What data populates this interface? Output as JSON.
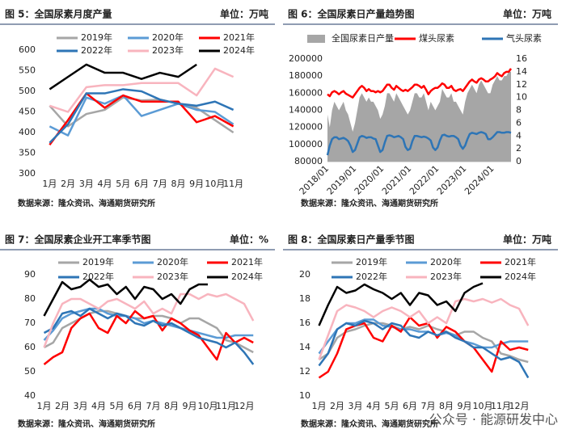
{
  "chart_data": [
    {
      "type": "line",
      "title": "图 5：全国尿素月度产量",
      "unit": "单位：万吨",
      "source": "数据来源：隆众资讯、海通期货研究所",
      "categories": [
        "1月",
        "2月",
        "3月",
        "4月",
        "5月",
        "6月",
        "7月",
        "8月",
        "9月",
        "10月",
        "11月"
      ],
      "ylim": [
        300,
        600
      ],
      "yticks": [
        300,
        350,
        400,
        450,
        500,
        550,
        600
      ],
      "series": [
        {
          "name": "2019年",
          "color": "#a6a6a6",
          "values": [
            465,
            415,
            445,
            455,
            485,
            478,
            480,
            470,
            460,
            430,
            400
          ]
        },
        {
          "name": "2020年",
          "color": "#5b9bd5",
          "values": [
            415,
            393,
            485,
            470,
            490,
            440,
            455,
            470,
            455,
            450,
            420
          ]
        },
        {
          "name": "2021年",
          "color": "#ff0000",
          "values": [
            370,
            430,
            495,
            460,
            490,
            475,
            475,
            475,
            425,
            440,
            415
          ]
        },
        {
          "name": "2022年",
          "color": "#2e75b6",
          "values": [
            375,
            420,
            495,
            495,
            505,
            500,
            480,
            470,
            465,
            475,
            455
          ]
        },
        {
          "name": "2023年",
          "color": "#f8b4be",
          "values": [
            465,
            450,
            510,
            515,
            515,
            520,
            520,
            520,
            490,
            555,
            535
          ]
        },
        {
          "name": "2024年",
          "color": "#000000",
          "values": [
            505,
            535,
            565,
            545,
            545,
            530,
            545,
            535,
            565,
            null,
            null
          ]
        }
      ]
    },
    {
      "type": "area_line",
      "title": "图 6：全国尿素日产量趋势图",
      "unit": "单位：万吨",
      "source": "数据来源：隆众资讯、海通期货研究所",
      "x": [
        "2018/01",
        "2018/02",
        "2018/03",
        "2018/04",
        "2018/05",
        "2018/06",
        "2018/07",
        "2018/08",
        "2018/09",
        "2018/10",
        "2018/11",
        "2018/12",
        "2019/01",
        "2019/02",
        "2019/03",
        "2019/04",
        "2019/05",
        "2019/06",
        "2019/07",
        "2019/08",
        "2019/09",
        "2019/10",
        "2019/11",
        "2019/12",
        "2020/01",
        "2020/02",
        "2020/03",
        "2020/04",
        "2020/05",
        "2020/06",
        "2020/07",
        "2020/08",
        "2020/09",
        "2020/10",
        "2020/11",
        "2020/12",
        "2021/01",
        "2021/02",
        "2021/03",
        "2021/04",
        "2021/05",
        "2021/06",
        "2021/07",
        "2021/08",
        "2021/09",
        "2021/10",
        "2021/11",
        "2021/12",
        "2022/01",
        "2022/02",
        "2022/03",
        "2022/04",
        "2022/05",
        "2022/06",
        "2022/07",
        "2022/08",
        "2022/09",
        "2022/10",
        "2022/11",
        "2022/12",
        "2023/01",
        "2023/02",
        "2023/03",
        "2023/04",
        "2023/05",
        "2023/06",
        "2023/07",
        "2023/08",
        "2023/09",
        "2023/10",
        "2023/11",
        "2023/12",
        "2024/01",
        "2024/02",
        "2024/03",
        "2024/04",
        "2024/05",
        "2024/06",
        "2024/07",
        "2024/08",
        "2024/09"
      ],
      "xticks": [
        "2018/01",
        "2019/01",
        "2020/01",
        "2021/01",
        "2022/01",
        "2023/01",
        "2024/01"
      ],
      "ylim": [
        80000,
        200000
      ],
      "yticks": [
        80000,
        100000,
        120000,
        140000,
        160000,
        180000,
        200000
      ],
      "y2lim": [
        0,
        16
      ],
      "y2ticks": [
        0,
        2,
        4,
        6,
        8,
        10,
        12,
        14,
        16
      ],
      "series": [
        {
          "name": "全国尿素日产量",
          "color": "#a6a6a6",
          "style": "area",
          "values": [
            135000,
            120000,
            140000,
            150000,
            145000,
            140000,
            145000,
            150000,
            140000,
            135000,
            125000,
            115000,
            125000,
            140000,
            155000,
            160000,
            155000,
            150000,
            155000,
            150000,
            150000,
            145000,
            140000,
            130000,
            135000,
            145000,
            160000,
            160000,
            155000,
            150000,
            160000,
            155000,
            150000,
            145000,
            140000,
            135000,
            140000,
            150000,
            160000,
            160000,
            155000,
            155000,
            160000,
            150000,
            140000,
            150000,
            145000,
            140000,
            145000,
            150000,
            165000,
            160000,
            155000,
            155000,
            160000,
            150000,
            150000,
            145000,
            140000,
            135000,
            150000,
            160000,
            165000,
            170000,
            165000,
            160000,
            170000,
            175000,
            170000,
            165000,
            160000,
            160000,
            170000,
            175000,
            180000,
            175000,
            175000,
            180000,
            180000,
            185000,
            185000
          ]
        },
        {
          "name": "煤头尿素",
          "color": "#ff0000",
          "axis": "y2",
          "values": [
            10.5,
            10.2,
            10.8,
            11,
            10.8,
            10.5,
            10.8,
            11,
            10.6,
            10.4,
            10.2,
            10,
            10.5,
            11,
            11.5,
            11.8,
            11.5,
            11,
            11.3,
            11,
            11,
            10.8,
            11,
            10.8,
            11,
            11.5,
            12,
            12,
            11.5,
            11.2,
            11.8,
            11.5,
            11.2,
            11,
            11.2,
            11,
            11.3,
            11.6,
            12,
            12,
            11.8,
            11.5,
            11.8,
            11.2,
            10.5,
            11,
            11.3,
            11.5,
            11.5,
            11.8,
            12.2,
            12,
            11.5,
            11.5,
            11.8,
            11.2,
            11,
            11.2,
            11.3,
            11,
            11.5,
            12,
            12.5,
            12.8,
            12.5,
            12.3,
            12.8,
            13,
            12.8,
            12.5,
            12.5,
            12.8,
            13,
            13.3,
            13.8,
            13.5,
            13.3,
            13.8,
            14,
            14,
            14.5
          ]
        },
        {
          "name": "气头尿素",
          "color": "#2e75b6",
          "axis": "y2",
          "values": [
            1,
            2.5,
            3.5,
            3.8,
            3.8,
            3.5,
            3.6,
            3.7,
            3.5,
            3.2,
            2.5,
            1.5,
            1.8,
            2.8,
            3.8,
            4,
            3.9,
            3.7,
            3.8,
            3.8,
            3.6,
            3.5,
            2.5,
            1.5,
            1.8,
            3,
            4,
            4.1,
            4,
            3.8,
            3.9,
            4,
            3.8,
            3.5,
            2.3,
            1.8,
            2,
            3.2,
            4,
            4,
            3.9,
            3.8,
            3.9,
            3.8,
            3.6,
            3.3,
            2.2,
            1.8,
            2.2,
            3.3,
            4.1,
            4.2,
            4,
            3.9,
            4,
            4,
            3.8,
            3.5,
            2.5,
            2,
            2.5,
            3.5,
            4.3,
            4.5,
            4.4,
            4.3,
            4.5,
            4.6,
            4.5,
            4.3,
            3.5,
            3.5,
            3.8,
            4.2,
            4.6,
            4.6,
            4.5,
            4.5,
            4.6,
            4.6,
            4.5
          ]
        }
      ]
    },
    {
      "type": "line",
      "title": "图 7：全国尿素企业开工率季节图",
      "unit": "单位：%",
      "source": "数据来源：隆众资讯、海通期货研究所",
      "x": [
        1,
        1.5,
        2,
        2.5,
        3,
        3.5,
        4,
        4.5,
        5,
        5.5,
        6,
        6.5,
        7,
        7.5,
        8,
        8.5,
        9,
        9.5,
        10,
        10.5,
        11,
        11.5,
        12,
        12.5
      ],
      "xlim": [
        0.8,
        12.8
      ],
      "xticks": [
        {
          "value": 1,
          "label": "1月"
        },
        {
          "value": 2,
          "label": "2月"
        },
        {
          "value": 3,
          "label": "3月"
        },
        {
          "value": 4,
          "label": "4月"
        },
        {
          "value": 5,
          "label": "5月"
        },
        {
          "value": 6,
          "label": "6月"
        },
        {
          "value": 7,
          "label": "7月"
        },
        {
          "value": 8,
          "label": "8月"
        },
        {
          "value": 9,
          "label": "9月"
        },
        {
          "value": 10,
          "label": "10月"
        },
        {
          "value": 11,
          "label": "11月"
        },
        {
          "value": 12,
          "label": "12月"
        }
      ],
      "ylim": [
        40,
        90
      ],
      "yticks": [
        40,
        50,
        60,
        70,
        80,
        90
      ],
      "series": [
        {
          "name": "2019年",
          "color": "#a6a6a6",
          "values": [
            60,
            62,
            68,
            70,
            72,
            74,
            75,
            75,
            74,
            73,
            72,
            72,
            73,
            73,
            72,
            70,
            72,
            72,
            70,
            68,
            63,
            62,
            60,
            58
          ]
        },
        {
          "name": "2020年",
          "color": "#5b9bd5",
          "values": [
            63,
            67,
            72,
            74,
            75,
            76,
            76,
            74,
            73,
            73,
            72,
            70,
            71,
            70,
            69,
            68,
            67,
            66,
            65,
            64,
            64,
            65,
            65,
            65
          ]
        },
        {
          "name": "2021年",
          "color": "#ff0000",
          "values": [
            53,
            56,
            58,
            68,
            72,
            74,
            68,
            66,
            73,
            70,
            75,
            72,
            73,
            67,
            72,
            70,
            67,
            65,
            60,
            55,
            66,
            62,
            64,
            62
          ]
        },
        {
          "name": "2022年",
          "color": "#2e75b6",
          "values": [
            66,
            68,
            74,
            75,
            73,
            76,
            74,
            72,
            74,
            73,
            70,
            69,
            71,
            69,
            70,
            68,
            66,
            64,
            63,
            62,
            60,
            62,
            58,
            53
          ]
        },
        {
          "name": "2023年",
          "color": "#f8b4be",
          "values": [
            60,
            70,
            78,
            80,
            80,
            78,
            76,
            79,
            80,
            78,
            76,
            79,
            74,
            76,
            74,
            82,
            82,
            80,
            82,
            81,
            82,
            80,
            78,
            71
          ]
        },
        {
          "name": "2024年",
          "color": "#000000",
          "values": [
            73,
            80,
            87,
            84,
            85,
            88,
            85,
            86,
            82,
            85,
            80,
            85,
            84,
            80,
            82,
            78,
            84,
            86,
            86,
            null,
            null,
            null,
            null,
            null
          ]
        }
      ]
    },
    {
      "type": "line",
      "title": "图 8：全国尿素日产量季节图",
      "unit": "单位：万吨",
      "source": "数据来源：隆众资讯、海通期货研究所",
      "x": [
        1,
        1.5,
        2,
        2.5,
        3,
        3.5,
        4,
        4.5,
        5,
        5.5,
        6,
        6.5,
        7,
        7.5,
        8,
        8.5,
        9,
        9.5,
        10,
        10.5,
        11,
        11.5,
        12,
        12.5
      ],
      "xlim": [
        0.8,
        12.8
      ],
      "xticks": [
        {
          "value": 1,
          "label": "1月"
        },
        {
          "value": 2,
          "label": "2月"
        },
        {
          "value": 3,
          "label": "3月"
        },
        {
          "value": 4,
          "label": "4月"
        },
        {
          "value": 5,
          "label": "5月"
        },
        {
          "value": 6,
          "label": "6月"
        },
        {
          "value": 7,
          "label": "7月"
        },
        {
          "value": 8,
          "label": "8月"
        },
        {
          "value": 9,
          "label": "9月"
        },
        {
          "value": 10,
          "label": "10月"
        },
        {
          "value": 11,
          "label": "11月"
        },
        {
          "value": 12,
          "label": "12月"
        }
      ],
      "ylim": [
        10,
        20
      ],
      "yticks": [
        10,
        12,
        14,
        16,
        18,
        20
      ],
      "series": [
        {
          "name": "2019年",
          "color": "#a6a6a6",
          "values": [
            13,
            13.5,
            14.8,
            15.3,
            15.5,
            15.8,
            16,
            16,
            15.8,
            15.5,
            15.7,
            15.5,
            15.8,
            15.5,
            15.3,
            15,
            15.3,
            15.3,
            14.8,
            14.5,
            13.5,
            13.3,
            13,
            12.8
          ]
        },
        {
          "name": "2020年",
          "color": "#5b9bd5",
          "values": [
            13.5,
            14.5,
            15.5,
            16,
            16,
            16.3,
            16.3,
            15.8,
            15.7,
            15.5,
            15.5,
            15.3,
            15.3,
            15,
            15.2,
            15,
            14.5,
            14.3,
            14,
            14,
            14.3,
            14.5,
            14.5,
            14.5
          ]
        },
        {
          "name": "2021年",
          "color": "#ff0000",
          "values": [
            11.5,
            12,
            13.5,
            15.5,
            15.8,
            16,
            14.8,
            14.5,
            15.8,
            15.3,
            16.5,
            15.8,
            16,
            14.8,
            15.7,
            15.3,
            14.5,
            14,
            13,
            12,
            14.5,
            13.8,
            14,
            13.8
          ]
        },
        {
          "name": "2022年",
          "color": "#2e75b6",
          "values": [
            12.5,
            13.5,
            15.5,
            16,
            15.8,
            16.2,
            16,
            15.5,
            16,
            15.8,
            15,
            14.8,
            15.3,
            15,
            15.3,
            14.8,
            14.5,
            14,
            14,
            13.5,
            13,
            13.2,
            12.8,
            11.5
          ]
        },
        {
          "name": "2023年",
          "color": "#f8b4be",
          "values": [
            13,
            15,
            17,
            17.5,
            17.3,
            17,
            16.5,
            17,
            17.3,
            17,
            16.5,
            17,
            16,
            16.5,
            16,
            17.8,
            18,
            17.8,
            18,
            17.7,
            18,
            17.5,
            17.2,
            15.8
          ]
        },
        {
          "name": "2024年",
          "color": "#000000",
          "values": [
            15.8,
            17.5,
            19,
            18.5,
            18.7,
            19.2,
            18.8,
            18.5,
            18,
            18.5,
            17.5,
            18.5,
            18.3,
            17.5,
            17.8,
            17,
            18.5,
            19,
            19.3,
            null,
            null,
            null,
            null,
            null
          ]
        }
      ]
    }
  ],
  "watermark": "公众号 · 能源研发中心"
}
